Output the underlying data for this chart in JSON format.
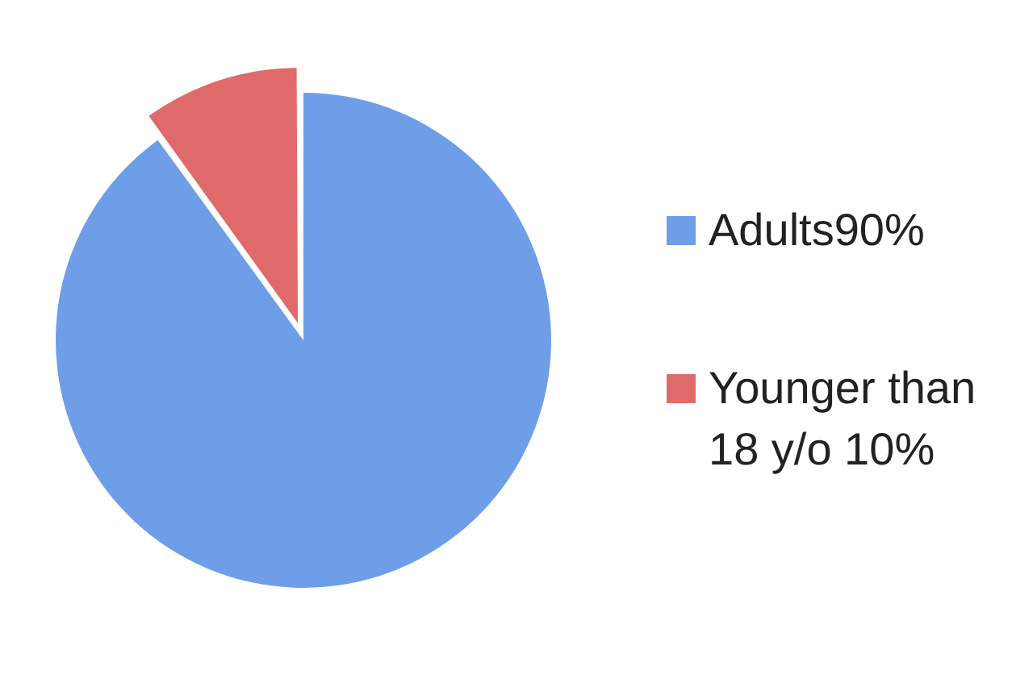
{
  "chart_data": {
    "type": "pie",
    "categories": [
      "Adults90%",
      "Younger than 18 y/o 10%"
    ],
    "values": [
      90,
      10
    ],
    "colors": [
      "#6f9ee8",
      "#e06a6a"
    ],
    "legend": "right"
  }
}
